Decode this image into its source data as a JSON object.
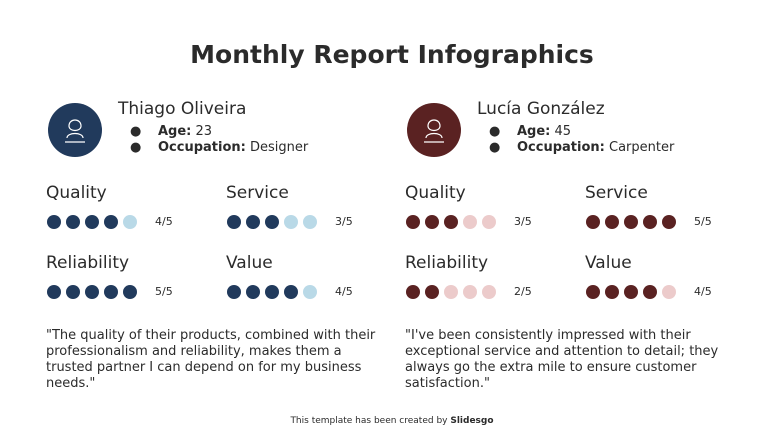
{
  "title": "Monthly Report Infographics",
  "scale_max": 5,
  "people": [
    {
      "name": "Thiago Oliveira",
      "color": "#213a5c",
      "light_color": "#b9d9e7",
      "details": [
        {
          "label": "Age:",
          "value": "23"
        },
        {
          "label": "Occupation:",
          "value": "Designer"
        }
      ],
      "ratings": [
        {
          "label": "Quality",
          "value": 4,
          "value_label": "4/5"
        },
        {
          "label": "Service",
          "value": 3,
          "value_label": "3/5"
        },
        {
          "label": "Reliability",
          "value": 5,
          "value_label": "5/5"
        },
        {
          "label": "Value",
          "value": 4,
          "value_label": "4/5"
        }
      ],
      "quote": "\"The quality of their products, combined with their professionalism and reliability, makes them a trusted partner I can depend on for my business needs.\""
    },
    {
      "name": "Lucía González",
      "color": "#5a2222",
      "light_color": "#eccbcb",
      "details": [
        {
          "label": "Age:",
          "value": "45"
        },
        {
          "label": "Occupation:",
          "value": "Carpenter"
        }
      ],
      "ratings": [
        {
          "label": "Quality",
          "value": 3,
          "value_label": "3/5"
        },
        {
          "label": "Service",
          "value": 5,
          "value_label": "5/5"
        },
        {
          "label": "Reliability",
          "value": 2,
          "value_label": "2/5"
        },
        {
          "label": "Value",
          "value": 4,
          "value_label": "4/5"
        }
      ],
      "quote": "\"I've been consistently impressed with their exceptional service and attention to detail; they always go the extra mile to ensure customer satisfaction.\""
    }
  ],
  "footer": {
    "text": "This template has been created by",
    "brand": "Slidesgo"
  }
}
